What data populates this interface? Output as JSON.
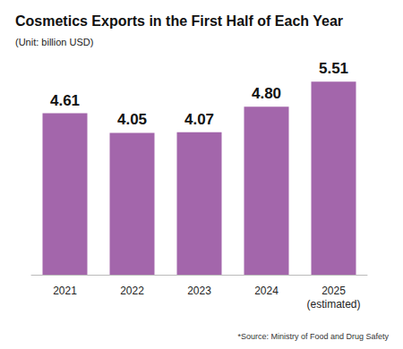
{
  "chart_data": {
    "type": "bar",
    "title": "Cosmetics Exports in the First Half of Each Year",
    "subtitle": "(Unit: billion USD)",
    "annotations": [
      "*Source: Ministry of Food and Drug Safety"
    ],
    "categories": [
      "2021",
      "2022",
      "2023",
      "2024",
      "2025\n(estimated)"
    ],
    "values": [
      4.61,
      4.05,
      4.07,
      4.8,
      5.51
    ],
    "value_labels": [
      "4.61",
      "4.05",
      "4.07",
      "4.80",
      "5.51"
    ],
    "color": "#a366ab",
    "ylim": [
      0,
      5.8
    ],
    "grid": false,
    "data_labels": true,
    "tick_labels": "x"
  }
}
